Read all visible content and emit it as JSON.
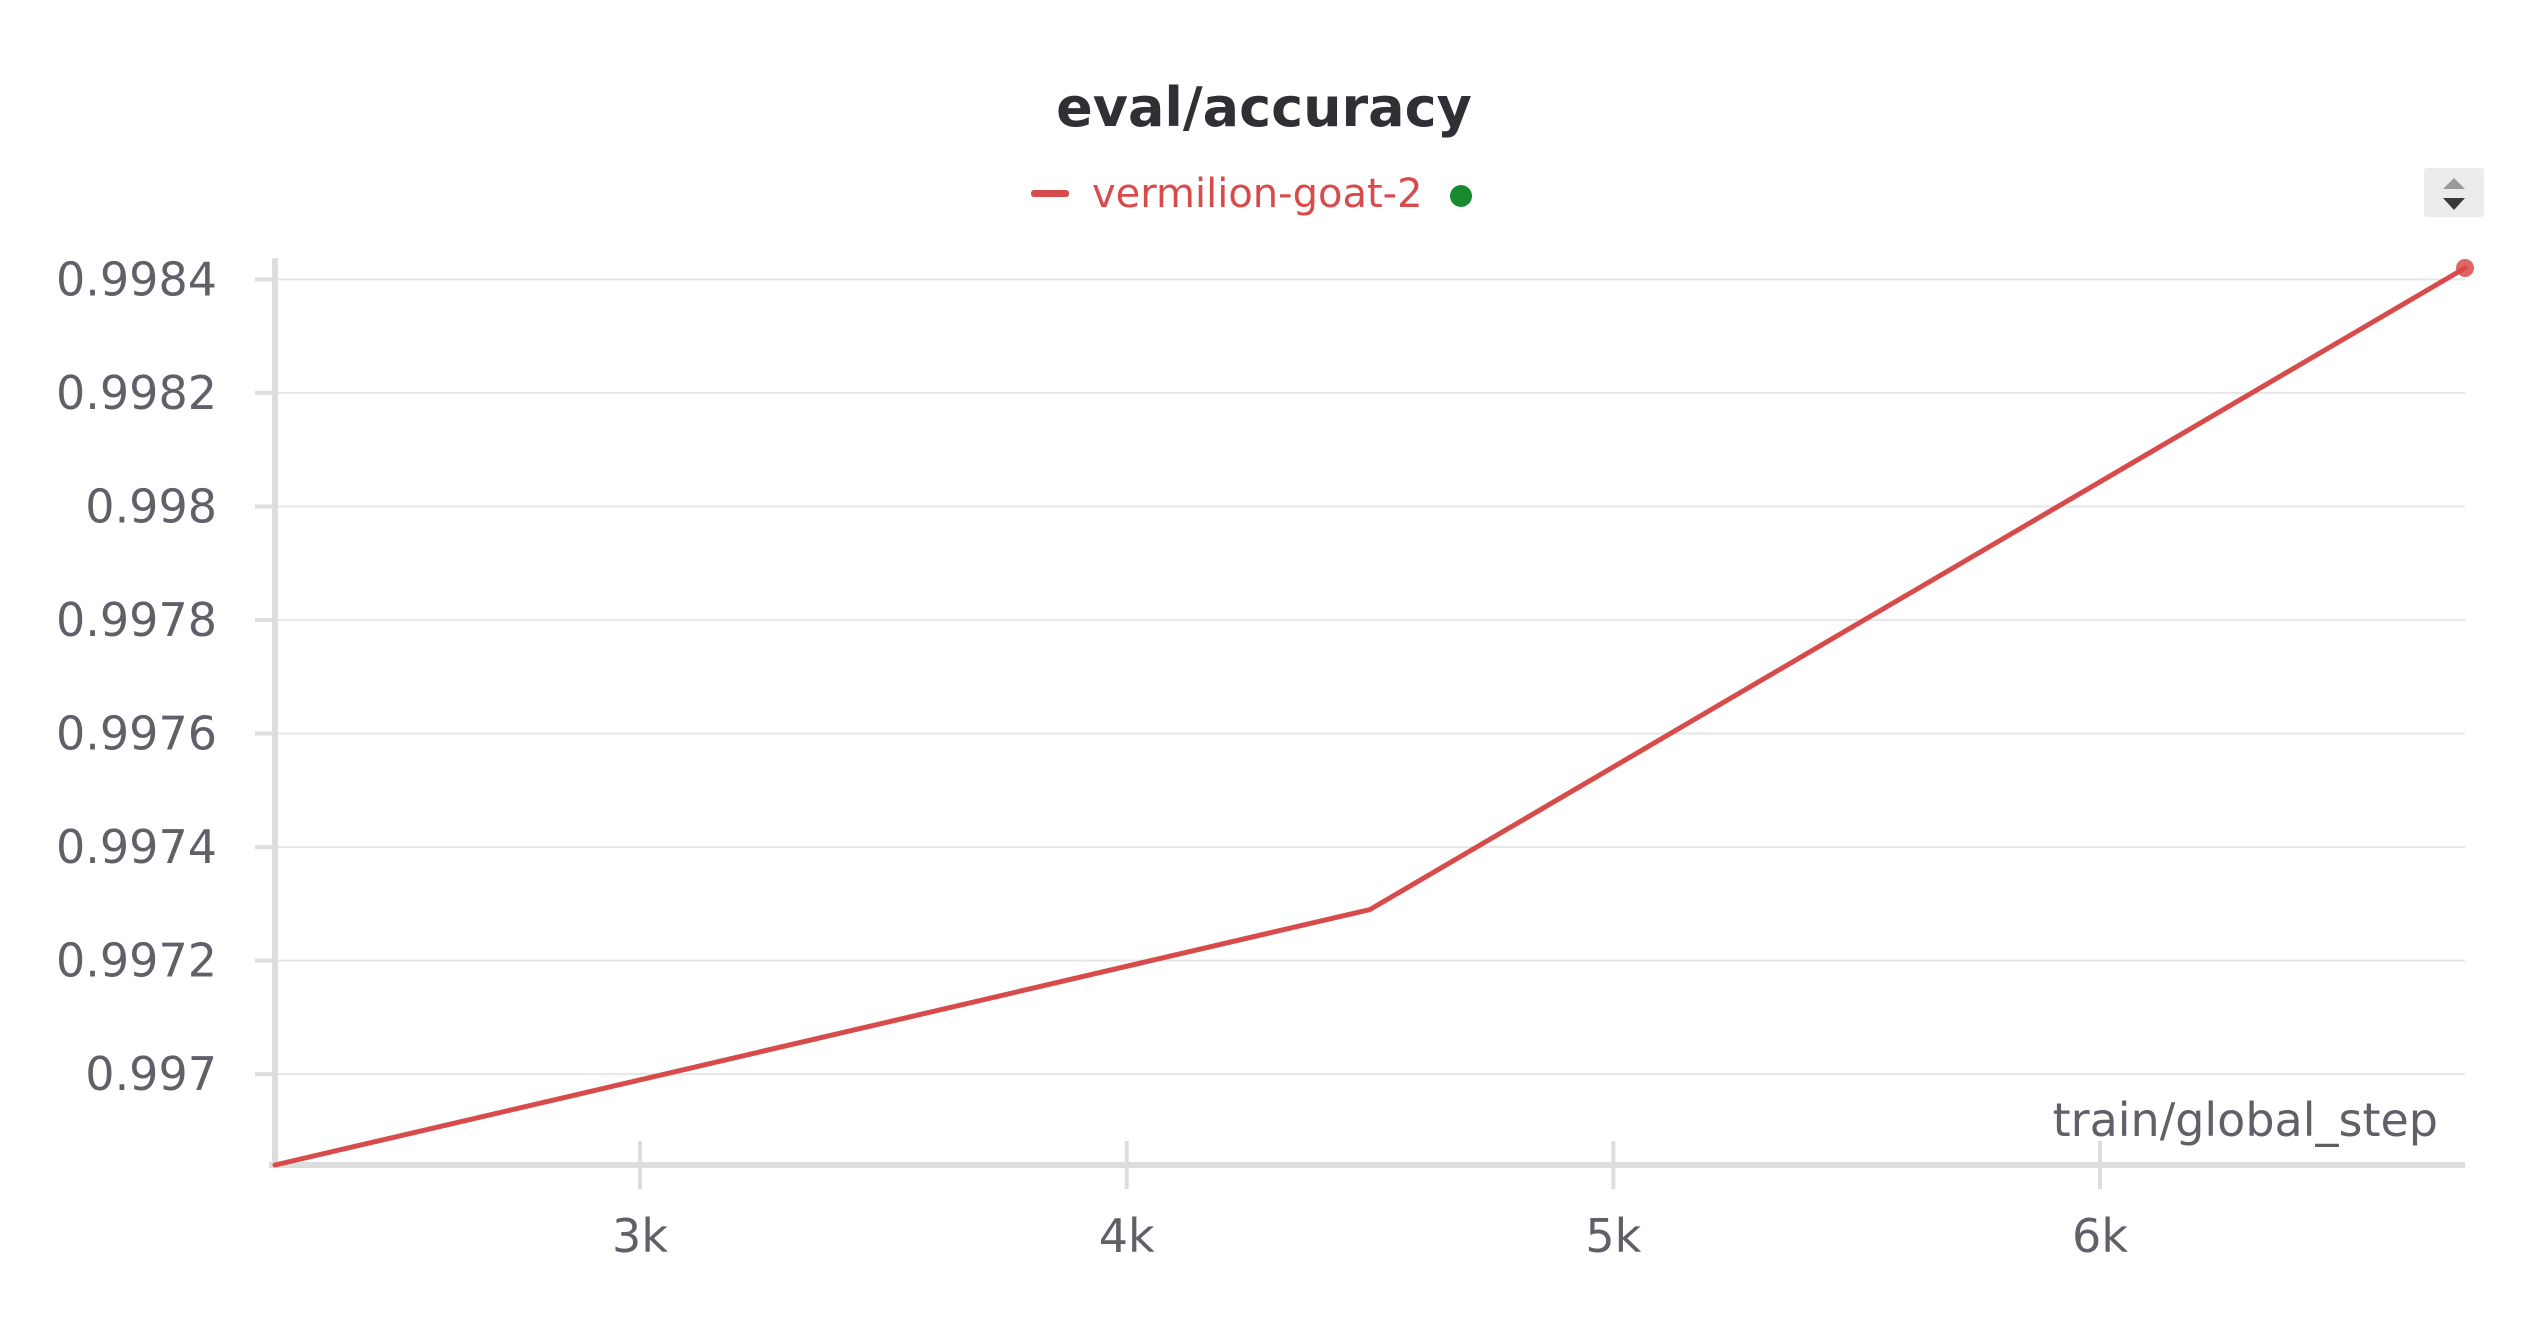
{
  "colors": {
    "series": "#d84b4b",
    "status_dot": "#168a2c",
    "grid": "#e6e6e6",
    "axis": "#dddddd",
    "text": "#5f6068",
    "title": "#2f3035",
    "button_bg": "#ececec",
    "button_icon": "#3a3a3a"
  },
  "controls": {
    "scroll_icon": "up-down-chevron-icon"
  },
  "chart_data": {
    "type": "line",
    "title": "eval/accuracy",
    "xlabel": "train/global_step",
    "ylabel": "",
    "xlim": [
      2250,
      6750
    ],
    "ylim": [
      0.99684,
      0.99842
    ],
    "xticks": [
      3000,
      4000,
      5000,
      6000
    ],
    "xtick_labels": [
      "3k",
      "4k",
      "5k",
      "6k"
    ],
    "yticks": [
      0.997,
      0.9972,
      0.9974,
      0.9976,
      0.9978,
      0.998,
      0.9982,
      0.9984
    ],
    "ytick_labels": [
      "0.997",
      "0.9972",
      "0.9974",
      "0.9976",
      "0.9978",
      "0.998",
      "0.9982",
      "0.9984"
    ],
    "grid": true,
    "legend_position": "top-center",
    "series": [
      {
        "name": "vermilion-goat-2",
        "color": "#d84b4b",
        "x": [
          2250,
          4500,
          6750
        ],
        "y": [
          0.99684,
          0.99729,
          0.99842
        ]
      }
    ]
  }
}
